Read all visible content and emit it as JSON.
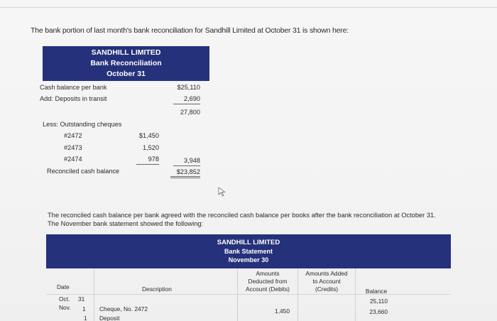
{
  "intro": "The bank portion of last month's bank reconciliation for Sandhill Limited at October 31 is shown here:",
  "reconciliation": {
    "title_lines": [
      "SANDHILL LIMITED",
      "Bank Reconciliation",
      "October 31"
    ],
    "cash_balance_label": "Cash balance per bank",
    "cash_balance": "$25,110",
    "deposits_label": "Add: Deposits in transit",
    "deposits": "2,690",
    "subtotal": "27,800",
    "outstanding_label": "Less: Outstanding cheques",
    "cheques": [
      {
        "no": "#2472",
        "amount": "$1,450"
      },
      {
        "no": "#2473",
        "amount": "1,520"
      },
      {
        "no": "#2474",
        "amount": "978"
      }
    ],
    "outstanding_total": "3,948",
    "reconciled_label": "Reconciled cash balance",
    "reconciled": "$23,852"
  },
  "paragraph": "The reconciled cash balance per bank agreed with the reconciled cash balance per books after the bank reconciliation at October 31. The November bank statement showed the following:",
  "statement": {
    "title_lines": [
      "SANDHILL LIMITED",
      "Bank Statement",
      "November 30"
    ],
    "headers": {
      "date": "Date",
      "description": "Description",
      "deducted": [
        "Amounts",
        "Deducted from",
        "Account (Debits)"
      ],
      "added": [
        "Amounts Added",
        "to Account",
        "(Credits)"
      ],
      "balance": "Balance"
    },
    "rows": [
      {
        "month": "Oct.",
        "day": "31",
        "description": "",
        "debit": "",
        "credit": "",
        "balance": "25,110"
      },
      {
        "month": "Nov.",
        "day": "1",
        "description": "Cheque, No. 2472",
        "debit": "1,450",
        "credit": "",
        "balance": "23,660"
      },
      {
        "month": "",
        "day": "1",
        "description": "Deposit",
        "debit": "",
        "credit": "",
        "balance": ""
      }
    ]
  }
}
